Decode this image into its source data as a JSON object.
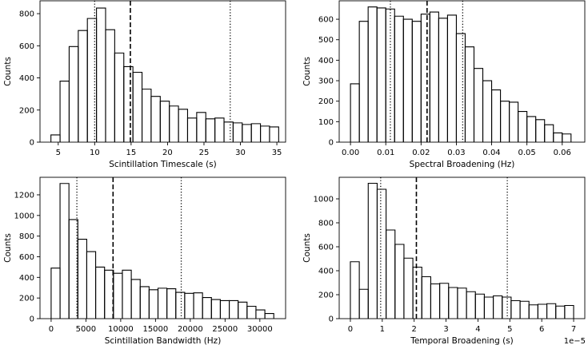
{
  "chart_data": [
    {
      "type": "histogram",
      "xlabel": "Scintillation Timescale (s)",
      "ylabel": "Counts",
      "xlim": [
        2.5,
        36.2
      ],
      "ylim": [
        0,
        880
      ],
      "xticks": [
        5,
        10,
        15,
        20,
        25,
        30,
        35
      ],
      "xtick_labels": [
        "5",
        "10",
        "15",
        "20",
        "25",
        "30",
        "35"
      ],
      "yticks": [
        0,
        200,
        400,
        600,
        800
      ],
      "ytick_labels": [
        "0",
        "200",
        "400",
        "600",
        "800"
      ],
      "offset_text": "",
      "bin_edges": [
        4.0,
        5.25,
        6.5,
        7.75,
        9.0,
        10.25,
        11.5,
        12.75,
        14.0,
        15.25,
        16.5,
        17.75,
        19.0,
        20.25,
        21.5,
        22.75,
        24.0,
        25.25,
        26.5,
        27.75,
        29.0,
        30.25,
        31.5,
        32.75,
        34.0,
        35.25
      ],
      "counts": [
        45,
        380,
        595,
        695,
        770,
        835,
        700,
        555,
        470,
        435,
        330,
        285,
        255,
        225,
        205,
        150,
        185,
        145,
        150,
        125,
        120,
        110,
        115,
        100,
        95
      ],
      "vlines": [
        {
          "x": 10.0,
          "style": "dotted"
        },
        {
          "x": 14.9,
          "style": "dashed"
        },
        {
          "x": 28.6,
          "style": "dotted"
        }
      ]
    },
    {
      "type": "histogram",
      "xlabel": "Spectral Broadening (Hz)",
      "ylabel": "Counts",
      "xlim": [
        -0.0032,
        0.0664
      ],
      "ylim": [
        0,
        690
      ],
      "xticks": [
        0.0,
        0.01,
        0.02,
        0.03,
        0.04,
        0.05,
        0.06
      ],
      "xtick_labels": [
        "0.00",
        "0.01",
        "0.02",
        "0.03",
        "0.04",
        "0.05",
        "0.06"
      ],
      "yticks": [
        0,
        100,
        200,
        300,
        400,
        500,
        600
      ],
      "ytick_labels": [
        "0",
        "100",
        "200",
        "300",
        "400",
        "500",
        "600"
      ],
      "offset_text": "",
      "bin_edges": [
        0.0,
        0.0025,
        0.005,
        0.0075,
        0.01,
        0.0125,
        0.015,
        0.0175,
        0.02,
        0.0225,
        0.025,
        0.0275,
        0.03,
        0.0325,
        0.035,
        0.0375,
        0.04,
        0.0425,
        0.045,
        0.0475,
        0.05,
        0.0525,
        0.055,
        0.0575,
        0.06,
        0.0625
      ],
      "counts": [
        285,
        590,
        660,
        655,
        650,
        615,
        600,
        590,
        625,
        635,
        605,
        620,
        530,
        465,
        360,
        300,
        255,
        200,
        195,
        150,
        125,
        110,
        85,
        45,
        40
      ],
      "vlines": [
        {
          "x": 0.0113,
          "style": "dotted"
        },
        {
          "x": 0.0217,
          "style": "dashed"
        },
        {
          "x": 0.0318,
          "style": "dotted"
        }
      ]
    },
    {
      "type": "histogram",
      "xlabel": "Scintillation Bandwidth (Hz)",
      "ylabel": "Counts",
      "xlim": [
        -1600,
        33700
      ],
      "ylim": [
        0,
        1370
      ],
      "xticks": [
        0,
        5000,
        10000,
        15000,
        20000,
        25000,
        30000
      ],
      "xtick_labels": [
        "0",
        "5000",
        "10000",
        "15000",
        "20000",
        "25000",
        "30000"
      ],
      "yticks": [
        0,
        200,
        400,
        600,
        800,
        1000,
        1200
      ],
      "ytick_labels": [
        "0",
        "200",
        "400",
        "600",
        "800",
        "1000",
        "1200"
      ],
      "offset_text": "",
      "bin_edges": [
        0,
        1280,
        2560,
        3840,
        5120,
        6400,
        7680,
        8960,
        10240,
        11520,
        12800,
        14080,
        15360,
        16640,
        17920,
        19200,
        20480,
        21760,
        23040,
        24320,
        25600,
        26880,
        28160,
        29440,
        30720,
        32000
      ],
      "counts": [
        490,
        1310,
        960,
        770,
        650,
        500,
        470,
        440,
        470,
        380,
        310,
        280,
        295,
        290,
        255,
        245,
        250,
        205,
        185,
        175,
        175,
        160,
        120,
        85,
        50
      ],
      "vlines": [
        {
          "x": 3700,
          "style": "dotted"
        },
        {
          "x": 8900,
          "style": "dashed"
        },
        {
          "x": 18700,
          "style": "dotted"
        }
      ]
    },
    {
      "type": "histogram",
      "xlabel": "Temporal Broadening (s)",
      "ylabel": "Counts",
      "xlim": [
        -3.5e-06,
        7.35e-05
      ],
      "ylim": [
        0,
        1180
      ],
      "xticks": [
        0,
        1e-05,
        2e-05,
        3e-05,
        4e-05,
        5e-05,
        6e-05,
        7e-05
      ],
      "xtick_labels": [
        "0",
        "1",
        "2",
        "3",
        "4",
        "5",
        "6",
        "7"
      ],
      "yticks": [
        0,
        200,
        400,
        600,
        800,
        1000
      ],
      "ytick_labels": [
        "0",
        "200",
        "400",
        "600",
        "800",
        "1000"
      ],
      "offset_text": "1e−5",
      "bin_edges": [
        0,
        2.8e-06,
        5.6e-06,
        8.4e-06,
        1.12e-05,
        1.4e-05,
        1.68e-05,
        1.96e-05,
        2.24e-05,
        2.52e-05,
        2.8e-05,
        3.08e-05,
        3.36e-05,
        3.64e-05,
        3.92e-05,
        4.2e-05,
        4.48e-05,
        4.76e-05,
        5.04e-05,
        5.32e-05,
        5.6e-05,
        5.88e-05,
        6.16e-05,
        6.44e-05,
        6.72e-05,
        7e-05
      ],
      "counts": [
        475,
        245,
        1130,
        1080,
        740,
        620,
        505,
        430,
        350,
        290,
        295,
        260,
        255,
        225,
        205,
        180,
        190,
        180,
        150,
        145,
        115,
        120,
        125,
        105,
        110
      ],
      "vlines": [
        {
          "x": 9.5e-06,
          "style": "dotted"
        },
        {
          "x": 2.07e-05,
          "style": "dashed"
        },
        {
          "x": 4.92e-05,
          "style": "dotted"
        }
      ]
    }
  ]
}
